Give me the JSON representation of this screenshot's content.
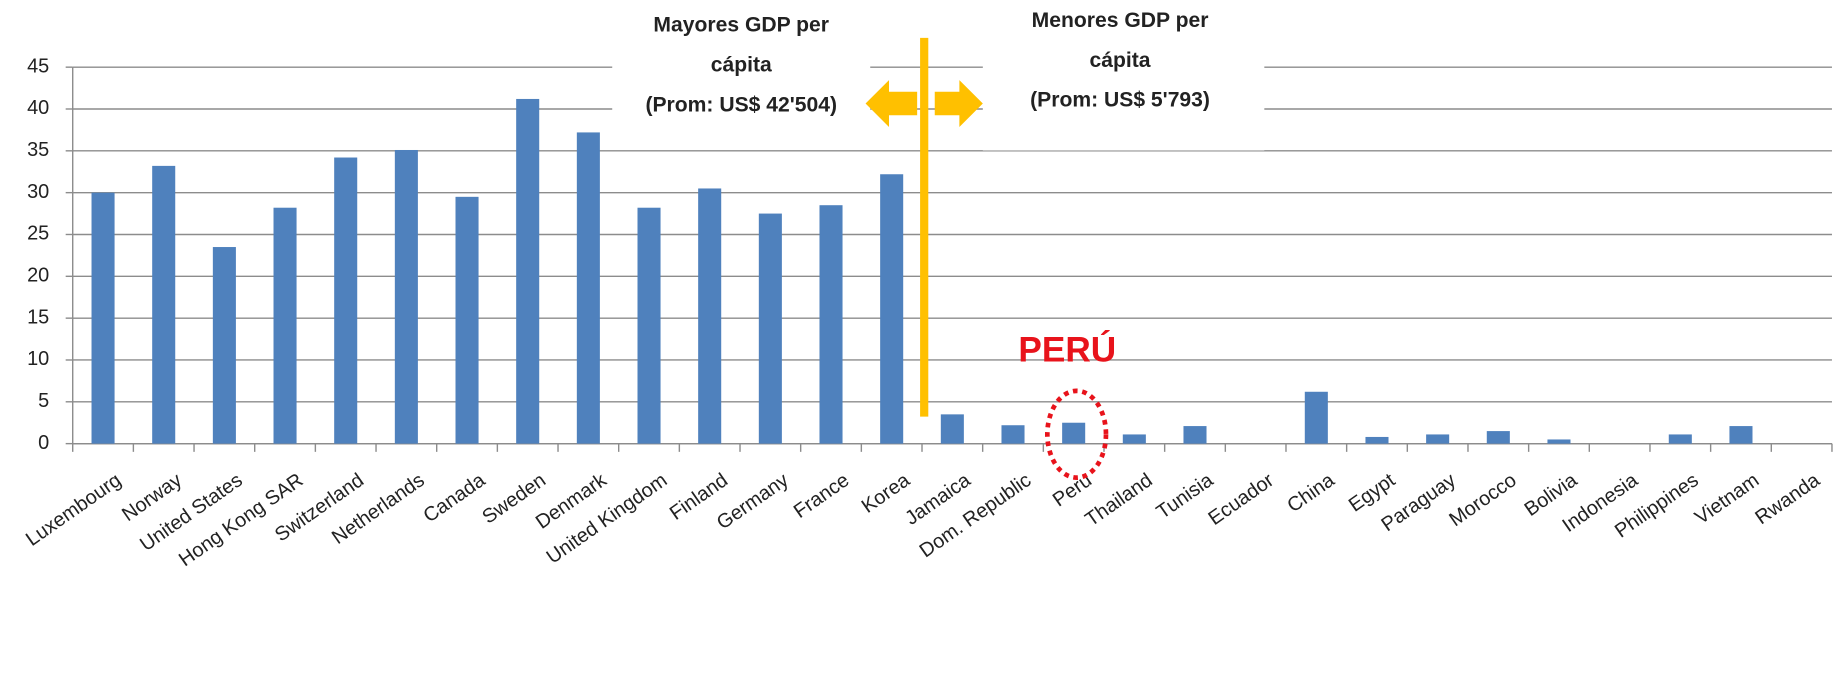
{
  "chart_data": {
    "type": "bar",
    "categories": [
      "Luxembourg",
      "Norway",
      "United States",
      "Hong Kong SAR",
      "Switzerland",
      "Netherlands",
      "Canada",
      "Sweden",
      "Denmark",
      "United Kingdom",
      "Finland",
      "Germany",
      "France",
      "Korea",
      "Jamaica",
      "Dom. Republic",
      "Peru",
      "Thailand",
      "Tunisia",
      "Ecuador",
      "China",
      "Egypt",
      "Paraguay",
      "Morocco",
      "Bolivia",
      "Indonesia",
      "Philippines",
      "Vietnam",
      "Rwanda"
    ],
    "values": [
      30,
      33.2,
      23.5,
      28.2,
      34.2,
      35.1,
      29.5,
      41.2,
      37.2,
      28.2,
      30.5,
      27.5,
      28.5,
      32.2,
      3.5,
      2.2,
      2.5,
      1.1,
      2.1,
      null,
      6.2,
      0.8,
      1.1,
      1.5,
      0.5,
      null,
      1.1,
      2.1,
      null
    ],
    "color": "#4f81bd",
    "ylim": [
      0,
      45
    ],
    "yticks": [
      0,
      5,
      10,
      15,
      20,
      25,
      30,
      35,
      40,
      45
    ],
    "grid": true,
    "annotations": [
      {
        "lines": [
          "Mayores GDP per",
          "cápita",
          "(Prom: US$ 42'504)"
        ]
      },
      {
        "lines": [
          "Menores GDP per",
          "cápita",
          "(Prom: US$ 5'793)"
        ]
      },
      {
        "lines": [
          "PERÚ"
        ],
        "color": "#e8131b"
      }
    ]
  }
}
